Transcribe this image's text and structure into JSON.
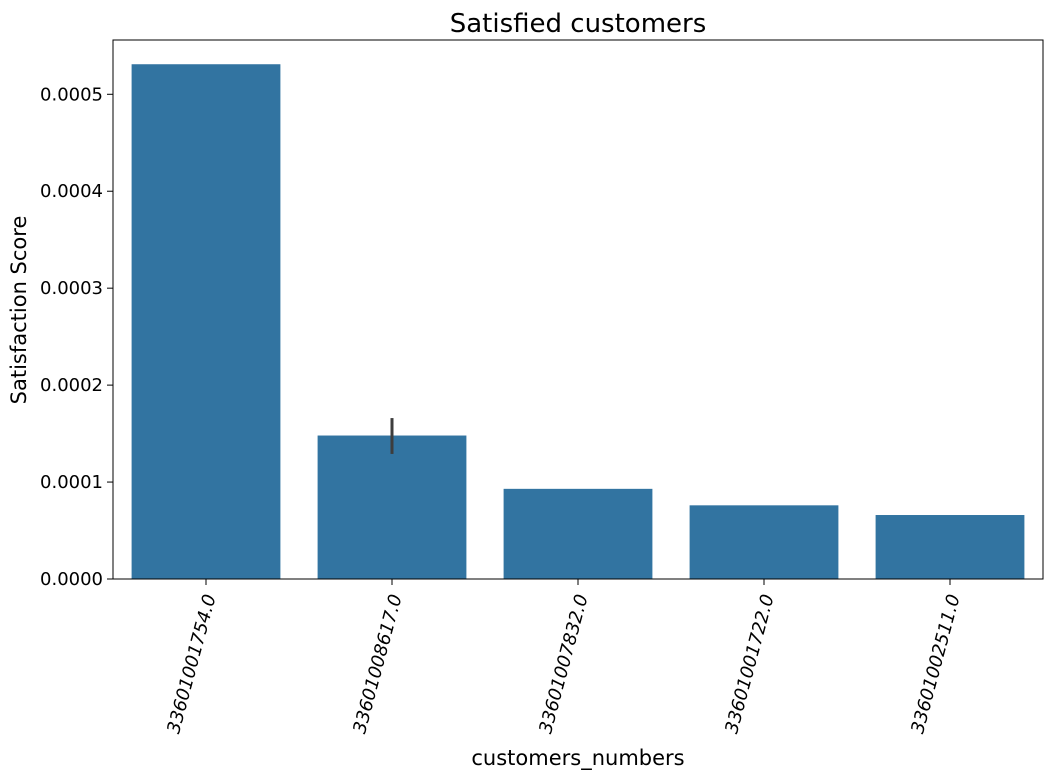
{
  "chart_data": {
    "type": "bar",
    "title": "Satisfied customers",
    "xlabel": "customers_numbers",
    "ylabel": "Satisfaction Score",
    "categories": [
      "33601001754.0",
      "33601008617.0",
      "33601007832.0",
      "33601001722.0",
      "33601002511.0"
    ],
    "values": [
      0.000531,
      0.000148,
      9.3e-05,
      7.6e-05,
      6.6e-05
    ],
    "error_bars": [
      null,
      [
        0.000129,
        0.000166
      ],
      null,
      null,
      null
    ],
    "ylim": [
      0,
      0.000556
    ],
    "yticks": [
      0,
      0.0001,
      0.0002,
      0.0003,
      0.0004,
      0.0005
    ],
    "ytick_labels": [
      "0.0000",
      "0.0001",
      "0.0002",
      "0.0003",
      "0.0004",
      "0.0005"
    ],
    "xtick_rotation": 75,
    "grid": false,
    "colors": {
      "bar": "#3274a1",
      "error_bar": "#3d3d3d"
    }
  }
}
